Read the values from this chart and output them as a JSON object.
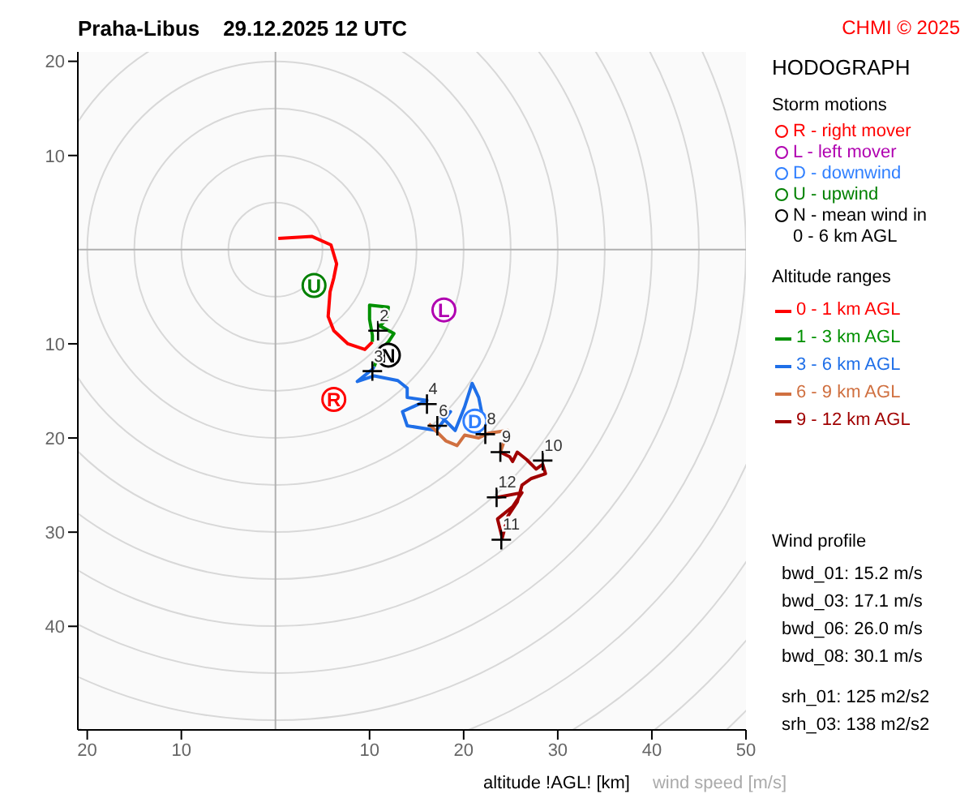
{
  "chart_data": {
    "type": "line",
    "title": "Praha-Libus    29.12.2025 12 UTC",
    "subtitle": "HODOGRAPH",
    "xlim": [
      -21,
      50
    ],
    "ylim": [
      -51,
      21
    ],
    "xticks": [
      {
        "value": -20,
        "label": "20"
      },
      {
        "value": -10,
        "label": "10"
      },
      10,
      20,
      30,
      40,
      50
    ],
    "yticks": [
      20,
      10,
      {
        "value": -10,
        "label": "10"
      },
      {
        "value": -20,
        "label": "20"
      },
      {
        "value": -30,
        "label": "30"
      },
      {
        "value": -40,
        "label": "40"
      }
    ],
    "legend": "right",
    "series": [
      {
        "name": "R - right mover",
        "type": "scatter",
        "marker": "circle",
        "color": "#ff0000",
        "x": [
          6.2
        ],
        "values": [
          -15.9
        ],
        "value_labels": [
          "R"
        ]
      },
      {
        "name": "L - left mover",
        "type": "scatter",
        "marker": "circle",
        "color": "#b000b0",
        "x": [
          17.9
        ],
        "values": [
          -6.4
        ],
        "value_labels": [
          "L"
        ]
      },
      {
        "name": "D - downwind",
        "type": "scatter",
        "marker": "circle",
        "color": "#2f7fff",
        "x": [
          21.2
        ],
        "values": [
          -18.2
        ],
        "value_labels": [
          "D"
        ]
      },
      {
        "name": "U - upwind",
        "type": "scatter",
        "marker": "circle",
        "color": "#008000",
        "x": [
          4.1
        ],
        "values": [
          -3.8
        ],
        "value_labels": [
          "U"
        ]
      },
      {
        "name": "N - mean wind in 0 - 6 km AGL",
        "type": "scatter",
        "marker": "circle",
        "color": "#000000",
        "x": [
          12.0
        ],
        "values": [
          -11.2
        ],
        "value_labels": [
          "N"
        ]
      },
      {
        "name": "0 - 1 km AGL",
        "color": "#ff0000",
        "x": [
          0.3,
          3.9,
          5.9,
          6.5,
          6.2,
          5.8,
          5.6,
          6.2,
          7.7,
          9.5,
          10.3
        ],
        "values": [
          1.2,
          1.4,
          0.5,
          -1.5,
          -3.0,
          -4.5,
          -7.1,
          -8.6,
          -10.0,
          -10.6,
          -9.8
        ]
      },
      {
        "name": "1 - 3 km AGL",
        "color": "#009000",
        "x": [
          10.3,
          10.3,
          10.0,
          10.0,
          12.0,
          11.8,
          11.1,
          12.6,
          12.0,
          11.2,
          10.5
        ],
        "values": [
          -9.8,
          -9.1,
          -7.4,
          -5.9,
          -6.1,
          -7.4,
          -8.1,
          -8.9,
          -9.8,
          -10.6,
          -12.4
        ]
      },
      {
        "name": "3 - 6 km AGL",
        "color": "#1f6fe8",
        "x": [
          10.5,
          10.3,
          8.7,
          10.5,
          13.0,
          14.0,
          14.0,
          16.1,
          13.5,
          14.0,
          17.1,
          18.6,
          17.6,
          19.1,
          20.1,
          20.9,
          21.6,
          22.1,
          21.6
        ],
        "values": [
          -12.4,
          -12.7,
          -14.0,
          -13.4,
          -13.9,
          -14.7,
          -15.7,
          -16.0,
          -17.2,
          -18.7,
          -19.2,
          -17.2,
          -17.7,
          -19.2,
          -16.7,
          -14.2,
          -15.7,
          -18.2,
          -19.5
        ]
      },
      {
        "name": "6 - 9 km AGL",
        "color": "#d07040",
        "x": [
          16.3,
          18.1,
          19.3,
          20.1,
          21.6,
          22.6,
          24.7,
          23.9
        ],
        "values": [
          -18.5,
          -20.3,
          -20.8,
          -19.7,
          -20.0,
          -19.5,
          -19.2,
          -21.5
        ]
      },
      {
        "name": "9 - 12 km AGL",
        "color": "#a00000",
        "x": [
          23.9,
          24.9,
          25.2,
          25.7,
          26.7,
          27.7,
          28.4,
          28.7,
          27.2,
          26.2,
          25.7,
          24.7,
          24.1,
          23.6,
          25.2,
          26.2,
          23.6
        ],
        "values": [
          -21.5,
          -22.0,
          -22.5,
          -21.5,
          -22.3,
          -23.3,
          -22.8,
          -23.8,
          -24.3,
          -25.0,
          -26.8,
          -28.3,
          -30.6,
          -28.6,
          -27.3,
          -25.8,
          -26.3
        ]
      }
    ],
    "annotations": [
      "CHMI © 2025",
      "Storm motions",
      "Altitude ranges",
      "Wind profile",
      "bwd_01: 15.2 m/s",
      "bwd_03: 17.1 m/s",
      "bwd_06: 26.0 m/s",
      "bwd_08: 30.1 m/s",
      "srh_01: 125 m2/s2",
      "srh_03: 138 m2/s2",
      "altitude !AGL! [km]",
      "wind speed [m/s]",
      {
        "text": "2",
        "x": 10.9,
        "y": -8.6
      },
      {
        "text": "3",
        "x": 10.3,
        "y": -12.9
      },
      {
        "text": "4",
        "x": 16.1,
        "y": -16.4
      },
      {
        "text": "6",
        "x": 17.2,
        "y": -18.7
      },
      {
        "text": "8",
        "x": 22.3,
        "y": -19.6
      },
      {
        "text": "9",
        "x": 23.9,
        "y": -21.5
      },
      {
        "text": "10",
        "x": 28.4,
        "y": -22.4
      },
      {
        "text": "11",
        "x": 24.0,
        "y": -30.8
      },
      {
        "text": "12",
        "x": 23.5,
        "y": -26.3
      }
    ]
  }
}
